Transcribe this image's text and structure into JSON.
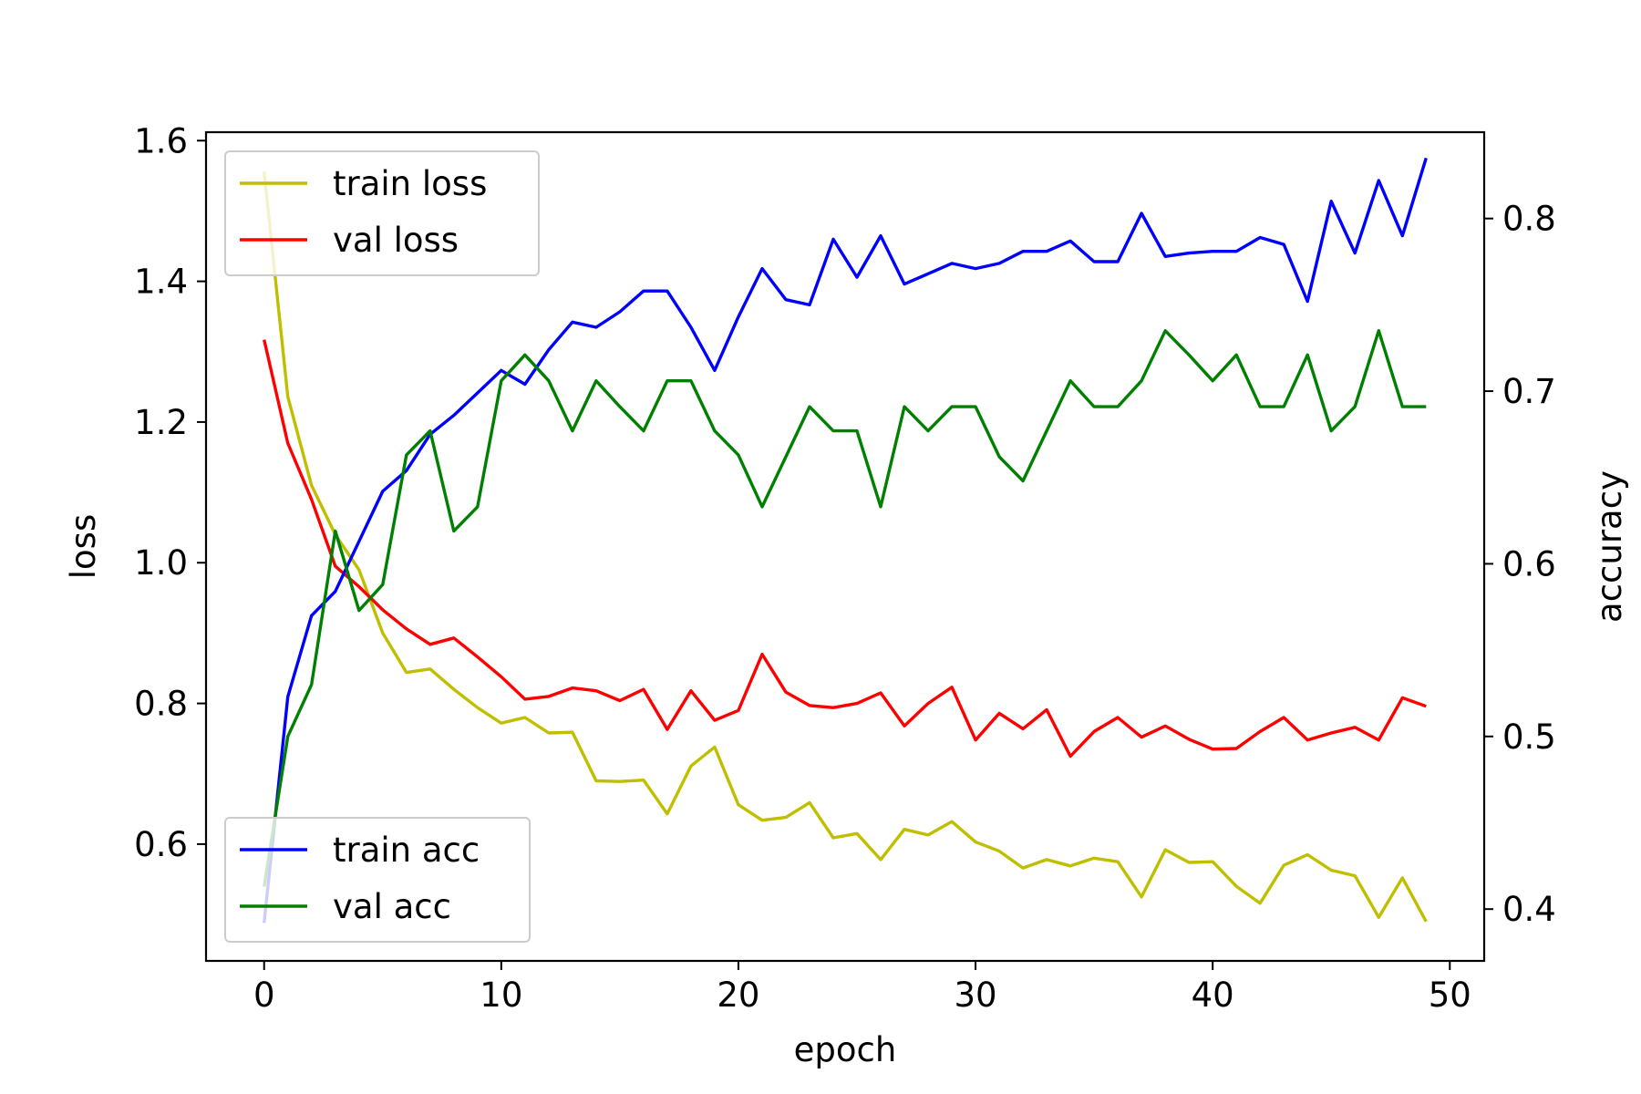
{
  "chart_data": {
    "type": "line",
    "xlabel": "epoch",
    "ylabel": "loss",
    "y2label": "accuracy",
    "xlim": [
      -2.45,
      51.45
    ],
    "ylim": [
      0.434,
      1.612
    ],
    "y2lim": [
      0.37,
      0.85
    ],
    "xticks": [
      0,
      10,
      20,
      30,
      40,
      50
    ],
    "yticks": [
      0.6,
      0.8,
      1.0,
      1.2,
      1.4,
      1.6
    ],
    "y2ticks": [
      0.4,
      0.5,
      0.6,
      0.7,
      0.8
    ],
    "x": [
      0,
      1,
      2,
      3,
      4,
      5,
      6,
      7,
      8,
      9,
      10,
      11,
      12,
      13,
      14,
      15,
      16,
      17,
      18,
      19,
      20,
      21,
      22,
      23,
      24,
      25,
      26,
      27,
      28,
      29,
      30,
      31,
      32,
      33,
      34,
      35,
      36,
      37,
      38,
      39,
      40,
      41,
      42,
      43,
      44,
      45,
      46,
      47,
      48,
      49
    ],
    "series": [
      {
        "name": "train loss",
        "axis": "left",
        "color": "#bfbf00",
        "values": [
          1.556,
          1.236,
          1.11,
          1.04,
          0.99,
          0.9,
          0.844,
          0.849,
          0.82,
          0.794,
          0.772,
          0.78,
          0.758,
          0.759,
          0.69,
          0.689,
          0.691,
          0.643,
          0.711,
          0.738,
          0.656,
          0.634,
          0.638,
          0.659,
          0.609,
          0.615,
          0.578,
          0.621,
          0.613,
          0.632,
          0.603,
          0.59,
          0.566,
          0.578,
          0.569,
          0.58,
          0.575,
          0.525,
          0.592,
          0.574,
          0.575,
          0.54,
          0.516,
          0.57,
          0.585,
          0.563,
          0.555,
          0.496,
          0.552,
          0.49
        ]
      },
      {
        "name": "val loss",
        "axis": "left",
        "color": "#ff0000",
        "values": [
          1.317,
          1.17,
          1.09,
          0.995,
          0.966,
          0.933,
          0.906,
          0.884,
          0.893,
          0.866,
          0.838,
          0.806,
          0.81,
          0.822,
          0.818,
          0.804,
          0.82,
          0.763,
          0.818,
          0.776,
          0.79,
          0.87,
          0.816,
          0.797,
          0.794,
          0.8,
          0.815,
          0.768,
          0.8,
          0.823,
          0.748,
          0.786,
          0.764,
          0.791,
          0.725,
          0.76,
          0.78,
          0.752,
          0.768,
          0.749,
          0.735,
          0.736,
          0.76,
          0.78,
          0.748,
          0.758,
          0.766,
          0.748,
          0.808,
          0.796
        ]
      },
      {
        "name": "train acc",
        "axis": "right",
        "color": "#0000ff",
        "values": [
          0.392,
          0.523,
          0.57,
          0.584,
          0.613,
          0.642,
          0.654,
          0.675,
          0.686,
          0.699,
          0.712,
          0.704,
          0.724,
          0.74,
          0.737,
          0.746,
          0.758,
          0.758,
          0.737,
          0.712,
          0.743,
          0.771,
          0.753,
          0.75,
          0.788,
          0.766,
          0.79,
          0.762,
          0.768,
          0.774,
          0.771,
          0.774,
          0.781,
          0.781,
          0.787,
          0.775,
          0.775,
          0.803,
          0.778,
          0.78,
          0.781,
          0.781,
          0.789,
          0.785,
          0.752,
          0.81,
          0.78,
          0.822,
          0.79,
          0.835
        ]
      },
      {
        "name": "val acc",
        "axis": "right",
        "color": "#008000",
        "values": [
          0.413,
          0.5,
          0.53,
          0.619,
          0.573,
          0.588,
          0.663,
          0.677,
          0.619,
          0.633,
          0.706,
          0.721,
          0.706,
          0.677,
          0.706,
          0.691,
          0.677,
          0.706,
          0.706,
          0.677,
          0.663,
          0.633,
          0.662,
          0.691,
          0.677,
          0.677,
          0.633,
          0.691,
          0.677,
          0.691,
          0.691,
          0.662,
          0.648,
          0.677,
          0.706,
          0.691,
          0.691,
          0.706,
          0.735,
          0.721,
          0.706,
          0.721,
          0.691,
          0.691,
          0.721,
          0.677,
          0.691,
          0.735,
          0.691,
          0.691
        ]
      }
    ],
    "legends": [
      {
        "placement": "upper-left",
        "entries": [
          "train loss",
          "val loss"
        ]
      },
      {
        "placement": "lower-left",
        "entries": [
          "train acc",
          "val acc"
        ]
      }
    ],
    "grid": false
  }
}
